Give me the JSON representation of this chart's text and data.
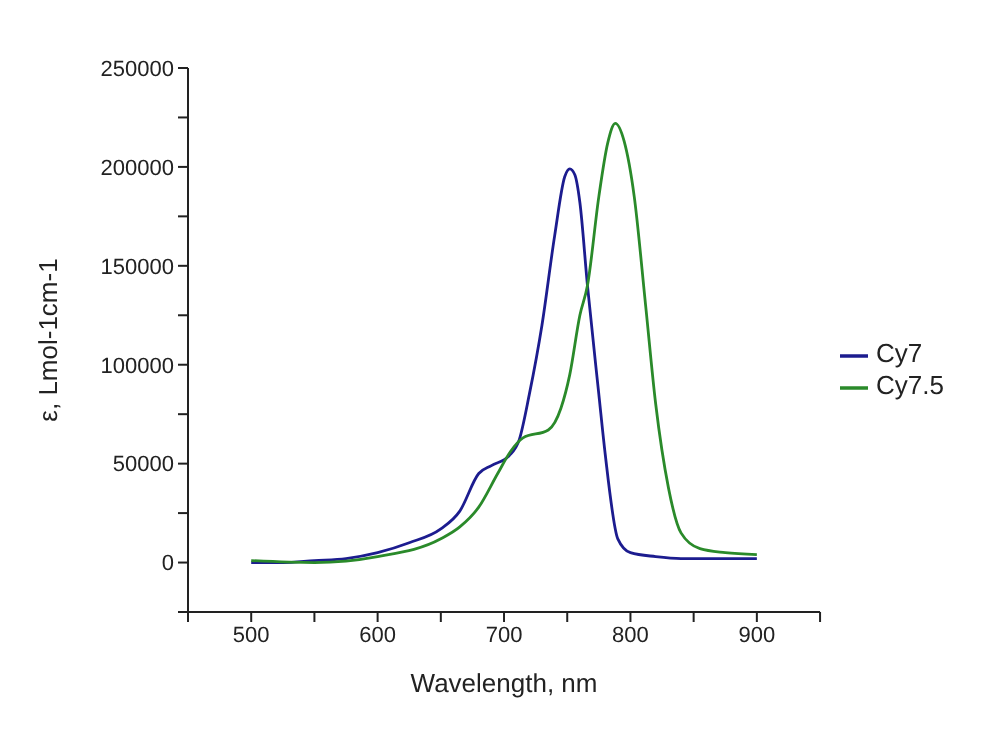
{
  "chart_data": {
    "type": "line",
    "xlabel": "Wavelength, nm",
    "ylabel": "ε, Lmol-1cm-1",
    "xlim": [
      450,
      950
    ],
    "xticks": [
      {
        "value": 450,
        "label": null
      },
      500,
      {
        "value": 550,
        "label": null
      },
      600,
      {
        "value": 650,
        "label": null
      },
      700,
      {
        "value": 750,
        "label": null
      },
      800,
      {
        "value": 850,
        "label": null
      },
      900,
      {
        "value": 950,
        "label": null
      }
    ],
    "ylim": [
      -25000,
      250000
    ],
    "yticks": [
      {
        "value": -25000,
        "label": null
      },
      0,
      {
        "value": 25000,
        "label": null
      },
      50000,
      {
        "value": 75000,
        "label": null
      },
      100000,
      {
        "value": 125000,
        "label": null
      },
      150000,
      {
        "value": 175000,
        "label": null
      },
      200000,
      {
        "value": 225000,
        "label": null
      },
      250000
    ],
    "legend": "right",
    "series": [
      {
        "name": "Cy7",
        "color": "#1c1c8f",
        "x": [
          500,
          525,
          550,
          575,
          600,
          625,
          650,
          665,
          680,
          690,
          704,
          712,
          720,
          730,
          740,
          748,
          752,
          756,
          760,
          766,
          775,
          780,
          790,
          800,
          820,
          840,
          870,
          900
        ],
        "values": [
          0,
          0,
          1000,
          2000,
          5000,
          10000,
          17000,
          26000,
          45000,
          49000,
          54000,
          62000,
          85000,
          120000,
          165000,
          195000,
          199000,
          196000,
          182000,
          140000,
          85000,
          55000,
          12000,
          5000,
          3000,
          2000,
          2000,
          2000
        ]
      },
      {
        "name": "Cy7.5",
        "color": "#2a8a2a",
        "x": [
          500,
          550,
          600,
          650,
          665,
          680,
          695,
          705,
          715,
          735,
          745,
          752,
          760,
          766,
          775,
          782,
          788,
          795,
          803,
          812,
          820,
          830,
          840,
          855,
          875,
          900
        ],
        "values": [
          1000,
          0,
          3000,
          12000,
          18000,
          28000,
          45000,
          56000,
          63000,
          67000,
          78000,
          95000,
          125000,
          140000,
          185000,
          212000,
          222000,
          213000,
          185000,
          130000,
          80000,
          38000,
          15000,
          7000,
          5000,
          4000
        ]
      }
    ]
  }
}
